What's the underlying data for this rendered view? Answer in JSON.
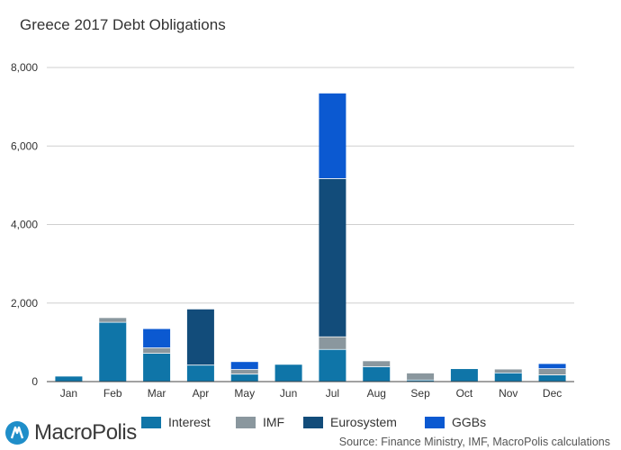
{
  "chart_data": {
    "type": "bar",
    "stacked": true,
    "title": "Greece 2017 Debt Obligations",
    "categories": [
      "Jan",
      "Feb",
      "Mar",
      "Apr",
      "May",
      "Jun",
      "Jul",
      "Aug",
      "Sep",
      "Oct",
      "Nov",
      "Dec"
    ],
    "series": [
      {
        "name": "Interest",
        "color": "#0f75a8",
        "values": [
          130,
          1510,
          720,
          420,
          190,
          430,
          820,
          380,
          40,
          320,
          220,
          170
        ]
      },
      {
        "name": "IMF",
        "color": "#8a979e",
        "values": [
          0,
          110,
          140,
          0,
          120,
          0,
          320,
          140,
          170,
          0,
          90,
          160
        ]
      },
      {
        "name": "Eurosystem",
        "color": "#124c7a",
        "values": [
          0,
          0,
          0,
          1420,
          0,
          0,
          4030,
          0,
          0,
          0,
          0,
          0
        ]
      },
      {
        "name": "GGBs",
        "color": "#0b59d1",
        "values": [
          0,
          0,
          480,
          0,
          190,
          0,
          2170,
          0,
          0,
          0,
          0,
          120
        ]
      }
    ],
    "ylim": [
      0,
      8000
    ],
    "yticks": [
      0,
      2000,
      4000,
      6000,
      8000
    ],
    "ytick_labels": [
      "0",
      "2,000",
      "4,000",
      "6,000",
      "8,000"
    ],
    "grid": true,
    "legend_position": "bottom"
  },
  "footer": {
    "logo_text": "MacroPolis",
    "source": "Source: Finance Ministry, IMF, MacroPolis calculations"
  }
}
